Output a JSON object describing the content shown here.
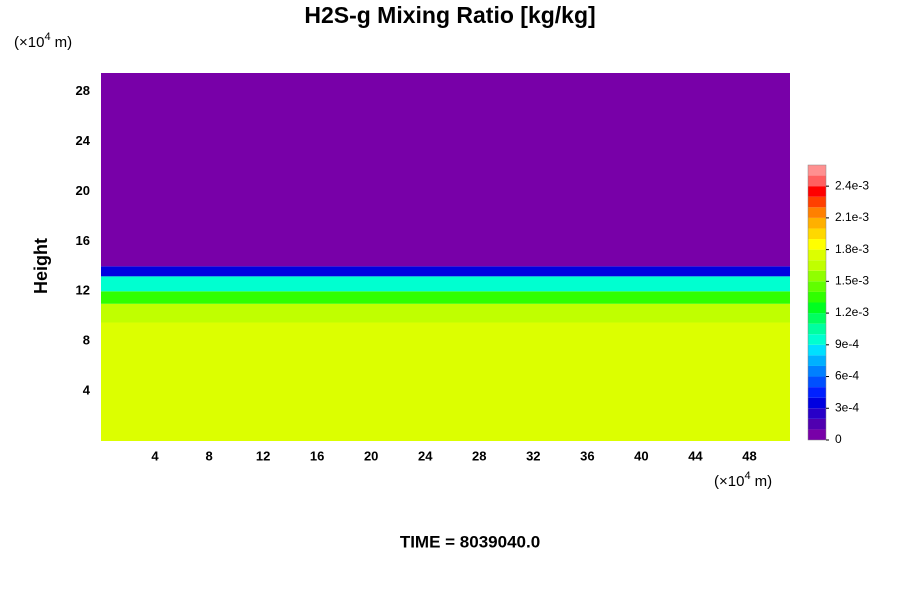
{
  "chart_data": {
    "type": "contour",
    "title": "H2S-g Mixing Ratio [kg/kg]",
    "y_label": "Height",
    "x_unit": {
      "base": "(×10",
      "exponent": "4",
      "suffix": "m)"
    },
    "y_unit": {
      "base": "(×10",
      "exponent": "4",
      "suffix": "m)"
    },
    "xlim": [
      0,
      51
    ],
    "ylim": [
      0,
      29.5
    ],
    "xticks": [
      4,
      8,
      12,
      16,
      20,
      24,
      28,
      32,
      36,
      40,
      44,
      48
    ],
    "yticks": [
      4,
      8,
      12,
      16,
      20,
      24,
      28
    ],
    "layers": [
      {
        "bottom": 0,
        "top": 9.5,
        "value": 0.00175
      },
      {
        "bottom": 9.5,
        "top": 11,
        "value": 0.0016
      },
      {
        "bottom": 11,
        "top": 12,
        "value": 0.0013
      },
      {
        "bottom": 12,
        "top": 13.2,
        "value": 0.0009
      },
      {
        "bottom": 13.2,
        "top": 14,
        "value": 0.0003
      },
      {
        "bottom": 14,
        "top": 29.5,
        "value": 0
      }
    ],
    "clim": [
      0,
      0.0026
    ],
    "colors": [
      "#7800a8",
      "#5000b0",
      "#2800c8",
      "#0000e0",
      "#0020ff",
      "#0050ff",
      "#0080ff",
      "#00b0ff",
      "#00e0ff",
      "#00ffd0",
      "#00ffa0",
      "#00ff60",
      "#00ff20",
      "#30ff00",
      "#60ff00",
      "#90ff00",
      "#c0ff00",
      "#dcff00",
      "#ffff00",
      "#ffd800",
      "#ffb000",
      "#ff8000",
      "#ff4000",
      "#ff0000",
      "#ff6060",
      "#ff9090"
    ],
    "cticks": [
      0,
      {
        "value": 0.0003,
        "label": "3e-4"
      },
      {
        "value": 0.0006,
        "label": "6e-4"
      },
      {
        "value": 0.0009,
        "label": "9e-4"
      },
      {
        "value": 0.0012,
        "label": "1.2e-3"
      },
      {
        "value": 0.0015,
        "label": "1.5e-3"
      },
      {
        "value": 0.0018,
        "label": "1.8e-3"
      },
      {
        "value": 0.0021,
        "label": "2.1e-3"
      },
      {
        "value": 0.0024,
        "label": "2.4e-3"
      }
    ],
    "footer": "TIME = 8039040.0"
  }
}
